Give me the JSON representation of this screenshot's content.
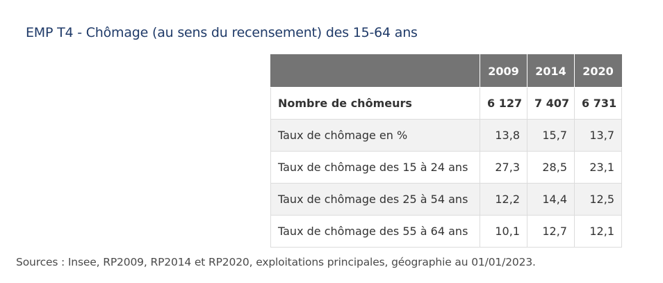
{
  "title": "EMP T4 - Chômage (au sens du recensement) des 15-64 ans",
  "table": {
    "headers": [
      "2009",
      "2014",
      "2020"
    ],
    "rows": [
      {
        "label": "Nombre de chômeurs",
        "values": [
          "6 127",
          "7 407",
          "6 731"
        ]
      },
      {
        "label": "Taux de chômage en %",
        "values": [
          "13,8",
          "15,7",
          "13,7"
        ]
      },
      {
        "label": "Taux de chômage des 15 à 24 ans",
        "values": [
          "27,3",
          "28,5",
          "23,1"
        ]
      },
      {
        "label": "Taux de chômage des 25 à 54 ans",
        "values": [
          "12,2",
          "14,4",
          "12,5"
        ]
      },
      {
        "label": "Taux de chômage des 55 à 64 ans",
        "values": [
          "10,1",
          "12,7",
          "12,1"
        ]
      }
    ]
  },
  "source": "Sources : Insee, RP2009, RP2014 et RP2020, exploitations principales, géographie au 01/01/2023."
}
